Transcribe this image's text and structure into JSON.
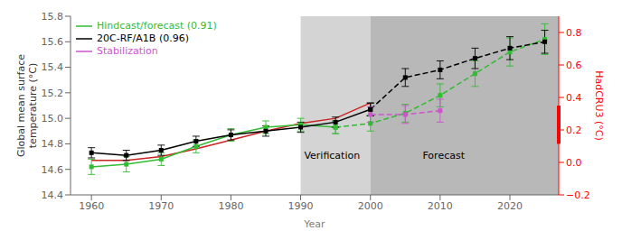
{
  "chart_data": {
    "type": "line",
    "xlabel": "Year",
    "ylabel": "Global mean surface\ntemperature (°C)",
    "y2label": "HadCRU3 (°C)",
    "xlim": [
      1957,
      2027
    ],
    "xticks": [
      1960,
      1970,
      1980,
      1990,
      2000,
      2010,
      2020
    ],
    "ylim": [
      14.4,
      15.8
    ],
    "yticks": [
      14.4,
      14.6,
      14.8,
      {
        "value": 15.0,
        "label": "15.0"
      },
      15.2,
      15.4,
      15.6,
      15.8
    ],
    "y2lim": [
      -0.2,
      0.9
    ],
    "y2ticks": [
      {
        "value": -0.2,
        "label": "−0.2"
      },
      {
        "value": 0.0,
        "label": "0.0"
      },
      0.2,
      0.4,
      0.6,
      0.8
    ],
    "grid": false,
    "legend": "upper left",
    "regions": [
      {
        "x": [
          1990,
          2000
        ],
        "color": "#d4d4d4"
      },
      {
        "x": [
          2000,
          2027
        ],
        "color": "#b8b8b8"
      }
    ],
    "annotations": [
      {
        "text": "Verification",
        "x": 1994.5,
        "y": 14.645
      },
      {
        "text": "Forecast",
        "x": 2010.5,
        "y": 14.645
      }
    ],
    "red_bar": {
      "y": [
        14.8,
        15.1
      ],
      "color": "red"
    },
    "series": [
      {
        "color": "#cc2222",
        "line_style": "solid",
        "x": [
          1960,
          1965,
          1970,
          1975,
          1980,
          1985,
          1990,
          1995,
          2000
        ],
        "values": [
          14.67,
          14.67,
          14.7,
          14.76,
          14.83,
          14.9,
          14.96,
          15.0,
          15.12
        ]
      },
      {
        "name": "Hindcast/forecast (0.91)",
        "color": "#33bb33",
        "line_style": "solid",
        "marker": "square",
        "x": [
          1960,
          1965,
          1970,
          1975,
          1980,
          1985,
          1990,
          1995
        ],
        "values": [
          14.62,
          14.64,
          14.68,
          14.78,
          14.87,
          14.93,
          14.95,
          14.93
        ],
        "errors": [
          0.06,
          0.06,
          0.05,
          0.05,
          0.05,
          0.05,
          0.05,
          0.05
        ]
      },
      {
        "color": "#33bb33",
        "line_style": "dashed",
        "marker": "square",
        "x": [
          1995,
          2000,
          2005,
          2010,
          2015,
          2020,
          2025
        ],
        "values": [
          14.93,
          14.96,
          15.04,
          15.18,
          15.35,
          15.52,
          15.62
        ],
        "errors": [
          0.05,
          0.06,
          0.07,
          0.09,
          0.1,
          0.11,
          0.12
        ]
      },
      {
        "name": "20C-RF/A1B (0.96)",
        "color": "#000000",
        "line_style": "solid",
        "marker": "square",
        "x": [
          1960,
          1965,
          1970,
          1975,
          1980,
          1985,
          1990,
          1995,
          2000
        ],
        "values": [
          14.73,
          14.71,
          14.75,
          14.82,
          14.87,
          14.9,
          14.93,
          14.97,
          15.07
        ],
        "errors": [
          0.04,
          0.04,
          0.04,
          0.04,
          0.04,
          0.04,
          0.04,
          0.04,
          0.05
        ]
      },
      {
        "color": "#000000",
        "line_style": "dashed",
        "marker": "square",
        "x": [
          2000,
          2005,
          2010,
          2015,
          2020,
          2025
        ],
        "values": [
          15.07,
          15.32,
          15.38,
          15.47,
          15.55,
          15.6
        ],
        "errors": [
          0.05,
          0.07,
          0.07,
          0.08,
          0.09,
          0.09
        ]
      },
      {
        "name": "Stabilization",
        "color": "#cc55cc",
        "line_style": "dashed",
        "marker": "square",
        "x": [
          2000,
          2005,
          2010
        ],
        "values": [
          15.03,
          15.03,
          15.06
        ],
        "errors": [
          0.06,
          0.07,
          0.09
        ]
      }
    ]
  }
}
